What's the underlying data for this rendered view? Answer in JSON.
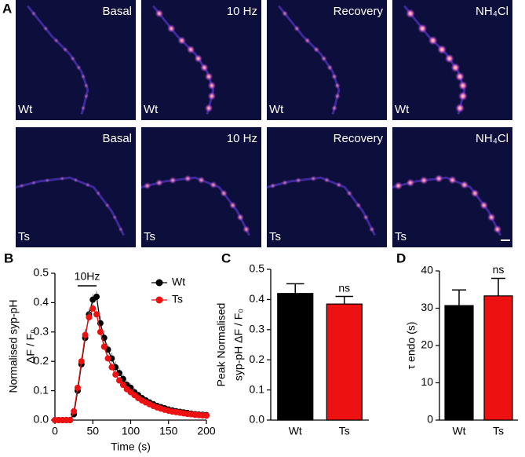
{
  "images": {
    "panel": "A",
    "rows": [
      {
        "label": "Wt",
        "conditions": [
          "Basal",
          "10 Hz",
          "Recovery",
          "NH₄Cl"
        ]
      },
      {
        "label": "Ts",
        "conditions": [
          "Basal",
          "10 Hz",
          "Recovery",
          "NH₄Cl"
        ]
      }
    ]
  },
  "chart_data": [
    {
      "type": "line",
      "panel": "B",
      "ylabel": [
        "Normalised syp-pH",
        "ΔF / F₀"
      ],
      "xlabel": "Time (s)",
      "annotation": {
        "text": "10Hz",
        "x": [
          30,
          55
        ]
      },
      "x": [
        0,
        5,
        10,
        15,
        20,
        25,
        30,
        35,
        40,
        45,
        50,
        55,
        60,
        65,
        70,
        75,
        80,
        85,
        90,
        95,
        100,
        105,
        110,
        115,
        120,
        125,
        130,
        135,
        140,
        145,
        150,
        155,
        160,
        165,
        170,
        175,
        180,
        185,
        190,
        195,
        200
      ],
      "series": [
        {
          "name": "Wt",
          "color": "#000000",
          "values": [
            0,
            0,
            0,
            0,
            0,
            0.02,
            0.1,
            0.19,
            0.28,
            0.36,
            0.41,
            0.42,
            0.33,
            0.28,
            0.24,
            0.21,
            0.18,
            0.16,
            0.14,
            0.12,
            0.11,
            0.095,
            0.085,
            0.075,
            0.067,
            0.06,
            0.054,
            0.048,
            0.044,
            0.04,
            0.036,
            0.033,
            0.03,
            0.028,
            0.026,
            0.024,
            0.022,
            0.02,
            0.019,
            0.018,
            0.017
          ],
          "errors": [
            0,
            0,
            0,
            0,
            0,
            0.005,
            0.01,
            0.015,
            0.02,
            0.02,
            0.02,
            0.02,
            0.025,
            0.025,
            0.02,
            0.02,
            0.02,
            0.018,
            0.016,
            0.015,
            0.014,
            0.013,
            0.012,
            0.011,
            0.01,
            0.009,
            0.008,
            0.008,
            0.007,
            0.007,
            0.006,
            0.006,
            0.005,
            0.005,
            0.005,
            0.004,
            0.004,
            0.004,
            0.004,
            0.003,
            0.003
          ]
        },
        {
          "name": "Ts",
          "color": "#ee1111",
          "values": [
            0,
            0,
            0,
            0,
            0,
            0.03,
            0.11,
            0.2,
            0.29,
            0.35,
            0.38,
            0.36,
            0.3,
            0.25,
            0.21,
            0.18,
            0.155,
            0.135,
            0.12,
            0.105,
            0.095,
            0.085,
            0.075,
            0.067,
            0.06,
            0.054,
            0.048,
            0.043,
            0.039,
            0.035,
            0.032,
            0.029,
            0.027,
            0.025,
            0.023,
            0.021,
            0.02,
            0.018,
            0.017,
            0.016,
            0.015
          ],
          "errors": [
            0,
            0,
            0,
            0,
            0,
            0.005,
            0.01,
            0.015,
            0.02,
            0.02,
            0.02,
            0.02,
            0.02,
            0.02,
            0.018,
            0.016,
            0.014,
            0.012,
            0.011,
            0.01,
            0.009,
            0.008,
            0.008,
            0.007,
            0.007,
            0.006,
            0.006,
            0.005,
            0.005,
            0.005,
            0.004,
            0.004,
            0.004,
            0.003,
            0.003,
            0.003,
            0.003,
            0.003,
            0.003,
            0.002,
            0.002
          ]
        }
      ],
      "xlim": [
        0,
        200
      ],
      "xticks": [
        0,
        50,
        100,
        150,
        200
      ],
      "ylim": [
        0,
        0.5
      ],
      "yticks": [
        {
          "value": 0,
          "label": "0.0"
        },
        0.1,
        0.2,
        0.3,
        0.4,
        0.5
      ],
      "legend": "top-right"
    },
    {
      "type": "bar",
      "panel": "C",
      "ylabel": [
        "Peak Normalised",
        "syp-pH ΔF / F₀"
      ],
      "categories": [
        "Wt",
        "Ts"
      ],
      "values": [
        0.42,
        0.385
      ],
      "errors": [
        0.032,
        0.025
      ],
      "colors": [
        "#000000",
        "#ee1111"
      ],
      "annotations": [
        null,
        "ns"
      ],
      "ylim": [
        0,
        0.5
      ],
      "yticks": [
        {
          "value": 0,
          "label": "0.0"
        },
        0.1,
        0.2,
        0.3,
        0.4,
        0.5
      ]
    },
    {
      "type": "bar",
      "panel": "D",
      "ylabel": [
        "τ endo (s)"
      ],
      "categories": [
        "Wt",
        "Ts"
      ],
      "values": [
        30.7,
        33.3
      ],
      "errors": [
        4.2,
        4.7
      ],
      "colors": [
        "#000000",
        "#ee1111"
      ],
      "annotations": [
        null,
        "ns"
      ],
      "ylim": [
        0,
        40
      ],
      "yticks": [
        0,
        10,
        20,
        30,
        40
      ]
    }
  ]
}
